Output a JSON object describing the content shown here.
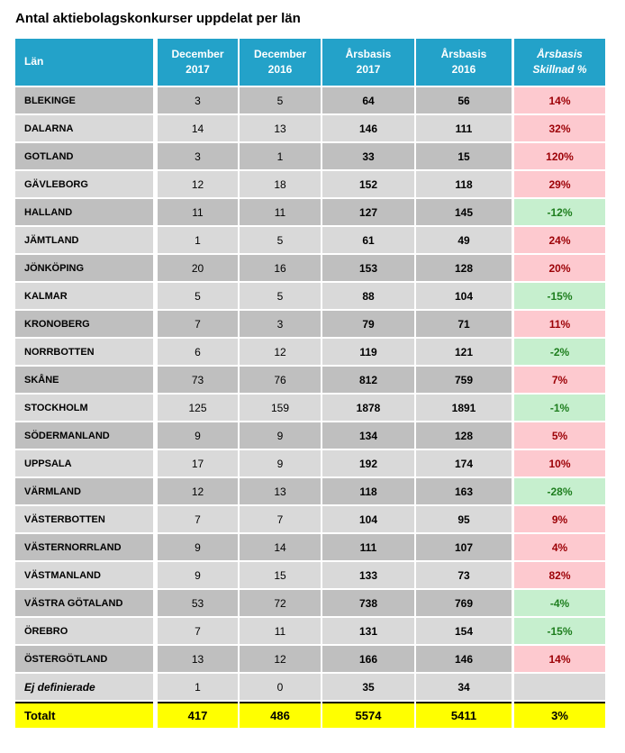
{
  "title": "Antal aktiebolagskonkurser uppdelat per län",
  "colors": {
    "header_bg": "#23a2c9",
    "row_dark": "#bfbfbf",
    "row_light": "#d9d9d9",
    "increase_bg": "#fdc9cf",
    "increase_text": "#9c0006",
    "decrease_bg": "#c6efce",
    "decrease_text": "#1e7e1e",
    "total_bg": "#ffff00"
  },
  "table": {
    "headers": [
      {
        "line1": "Län",
        "line2": "",
        "italic": false
      },
      {
        "line1": "December",
        "line2": "2017",
        "italic": false
      },
      {
        "line1": "December",
        "line2": "2016",
        "italic": false
      },
      {
        "line1": "Årsbasis",
        "line2": "2017",
        "italic": false
      },
      {
        "line1": "Årsbasis",
        "line2": "2016",
        "italic": false
      },
      {
        "line1": "Årsbasis",
        "line2": "Skillnad %",
        "italic": true
      }
    ],
    "rows": [
      {
        "lan": "BLEKINGE",
        "dec_2017": "3",
        "dec_2016": "5",
        "ars_2017": "64",
        "ars_2016": "56",
        "skillnad": "14%",
        "italic": false
      },
      {
        "lan": "DALARNA",
        "dec_2017": "14",
        "dec_2016": "13",
        "ars_2017": "146",
        "ars_2016": "111",
        "skillnad": "32%",
        "italic": false
      },
      {
        "lan": "GOTLAND",
        "dec_2017": "3",
        "dec_2016": "1",
        "ars_2017": "33",
        "ars_2016": "15",
        "skillnad": "120%",
        "italic": false
      },
      {
        "lan": "GÄVLEBORG",
        "dec_2017": "12",
        "dec_2016": "18",
        "ars_2017": "152",
        "ars_2016": "118",
        "skillnad": "29%",
        "italic": false
      },
      {
        "lan": "HALLAND",
        "dec_2017": "11",
        "dec_2016": "11",
        "ars_2017": "127",
        "ars_2016": "145",
        "skillnad": "-12%",
        "italic": false
      },
      {
        "lan": "JÄMTLAND",
        "dec_2017": "1",
        "dec_2016": "5",
        "ars_2017": "61",
        "ars_2016": "49",
        "skillnad": "24%",
        "italic": false
      },
      {
        "lan": "JÖNKÖPING",
        "dec_2017": "20",
        "dec_2016": "16",
        "ars_2017": "153",
        "ars_2016": "128",
        "skillnad": "20%",
        "italic": false
      },
      {
        "lan": "KALMAR",
        "dec_2017": "5",
        "dec_2016": "5",
        "ars_2017": "88",
        "ars_2016": "104",
        "skillnad": "-15%",
        "italic": false
      },
      {
        "lan": "KRONOBERG",
        "dec_2017": "7",
        "dec_2016": "3",
        "ars_2017": "79",
        "ars_2016": "71",
        "skillnad": "11%",
        "italic": false
      },
      {
        "lan": "NORRBOTTEN",
        "dec_2017": "6",
        "dec_2016": "12",
        "ars_2017": "119",
        "ars_2016": "121",
        "skillnad": "-2%",
        "italic": false
      },
      {
        "lan": "SKÅNE",
        "dec_2017": "73",
        "dec_2016": "76",
        "ars_2017": "812",
        "ars_2016": "759",
        "skillnad": "7%",
        "italic": false
      },
      {
        "lan": "STOCKHOLM",
        "dec_2017": "125",
        "dec_2016": "159",
        "ars_2017": "1878",
        "ars_2016": "1891",
        "skillnad": "-1%",
        "italic": false
      },
      {
        "lan": "SÖDERMANLAND",
        "dec_2017": "9",
        "dec_2016": "9",
        "ars_2017": "134",
        "ars_2016": "128",
        "skillnad": "5%",
        "italic": false
      },
      {
        "lan": "UPPSALA",
        "dec_2017": "17",
        "dec_2016": "9",
        "ars_2017": "192",
        "ars_2016": "174",
        "skillnad": "10%",
        "italic": false
      },
      {
        "lan": "VÄRMLAND",
        "dec_2017": "12",
        "dec_2016": "13",
        "ars_2017": "118",
        "ars_2016": "163",
        "skillnad": "-28%",
        "italic": false
      },
      {
        "lan": "VÄSTERBOTTEN",
        "dec_2017": "7",
        "dec_2016": "7",
        "ars_2017": "104",
        "ars_2016": "95",
        "skillnad": "9%",
        "italic": false
      },
      {
        "lan": "VÄSTERNORRLAND",
        "dec_2017": "9",
        "dec_2016": "14",
        "ars_2017": "111",
        "ars_2016": "107",
        "skillnad": "4%",
        "italic": false
      },
      {
        "lan": "VÄSTMANLAND",
        "dec_2017": "9",
        "dec_2016": "15",
        "ars_2017": "133",
        "ars_2016": "73",
        "skillnad": "82%",
        "italic": false
      },
      {
        "lan": "VÄSTRA GÖTALAND",
        "dec_2017": "53",
        "dec_2016": "72",
        "ars_2017": "738",
        "ars_2016": "769",
        "skillnad": "-4%",
        "italic": false
      },
      {
        "lan": "ÖREBRO",
        "dec_2017": "7",
        "dec_2016": "11",
        "ars_2017": "131",
        "ars_2016": "154",
        "skillnad": "-15%",
        "italic": false
      },
      {
        "lan": "ÖSTERGÖTLAND",
        "dec_2017": "13",
        "dec_2016": "12",
        "ars_2017": "166",
        "ars_2016": "146",
        "skillnad": "14%",
        "italic": false
      },
      {
        "lan": "Ej definierade",
        "dec_2017": "1",
        "dec_2016": "0",
        "ars_2017": "35",
        "ars_2016": "34",
        "skillnad": "",
        "italic": true
      }
    ],
    "total_row": {
      "lan": "Totalt",
      "dec_2017": "417",
      "dec_2016": "486",
      "ars_2017": "5574",
      "ars_2016": "5411",
      "skillnad": "3%"
    }
  }
}
